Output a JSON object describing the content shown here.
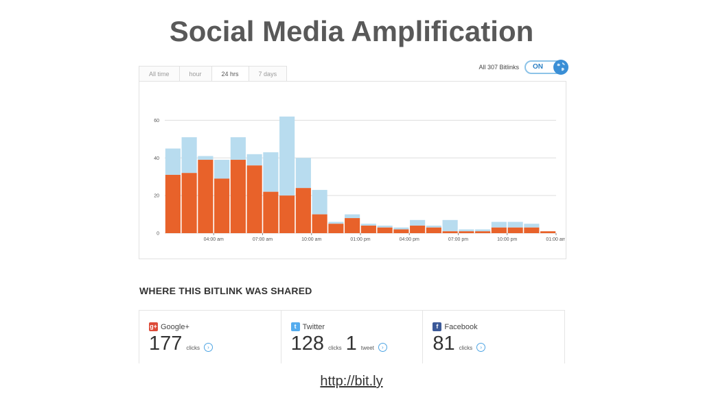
{
  "slide": {
    "title": "Social Media Amplification",
    "link": "http://bit.ly"
  },
  "tabs": [
    "All time",
    "hour",
    "24 hrs",
    "7 days"
  ],
  "active_tab": "24 hrs",
  "toggle": {
    "label": "All 307 Bitlinks",
    "state": "ON"
  },
  "colors": {
    "clicks_total": "#b8dcef",
    "clicks_share": "#e8622a",
    "grid": "#dddddd",
    "link_blue": "#4ba3e3"
  },
  "chart_data": {
    "type": "bar",
    "stacked": true,
    "x_tick_labels": [
      "04:00 am",
      "07:00 am",
      "10:00 am",
      "01:00 pm",
      "04:00 pm",
      "07:00 pm",
      "10:00 pm",
      "01:00 am"
    ],
    "y_ticks": [
      0,
      20,
      40,
      60
    ],
    "ylim": [
      0,
      70
    ],
    "grid": true,
    "series": [
      {
        "values": [
          31,
          32,
          39,
          29,
          39,
          36,
          22,
          20,
          24,
          10,
          5,
          8,
          4,
          3,
          2,
          4,
          3,
          1,
          1,
          1,
          3,
          3,
          3,
          1
        ]
      },
      {
        "values": [
          14,
          19,
          2,
          10,
          12,
          6,
          21,
          42,
          16,
          13,
          1,
          2,
          1,
          1,
          1,
          3,
          1,
          6,
          1,
          1,
          3,
          3,
          2,
          0
        ]
      }
    ]
  },
  "section_title": "WHERE THIS BITLINK WAS SHARED",
  "shares": [
    {
      "name": "Google+",
      "icon": "google-plus-icon",
      "icon_glyph": "g+",
      "color": "#dd4b39",
      "count": "177",
      "count_label": "clicks"
    },
    {
      "name": "Twitter",
      "icon": "twitter-icon",
      "icon_glyph": "t",
      "color": "#55acee",
      "count": "128",
      "count_label": "clicks",
      "tweets": "1",
      "tweets_label": "tweet"
    },
    {
      "name": "Facebook",
      "icon": "facebook-icon",
      "icon_glyph": "f",
      "color": "#3b5998",
      "count": "81",
      "count_label": "clicks"
    }
  ]
}
